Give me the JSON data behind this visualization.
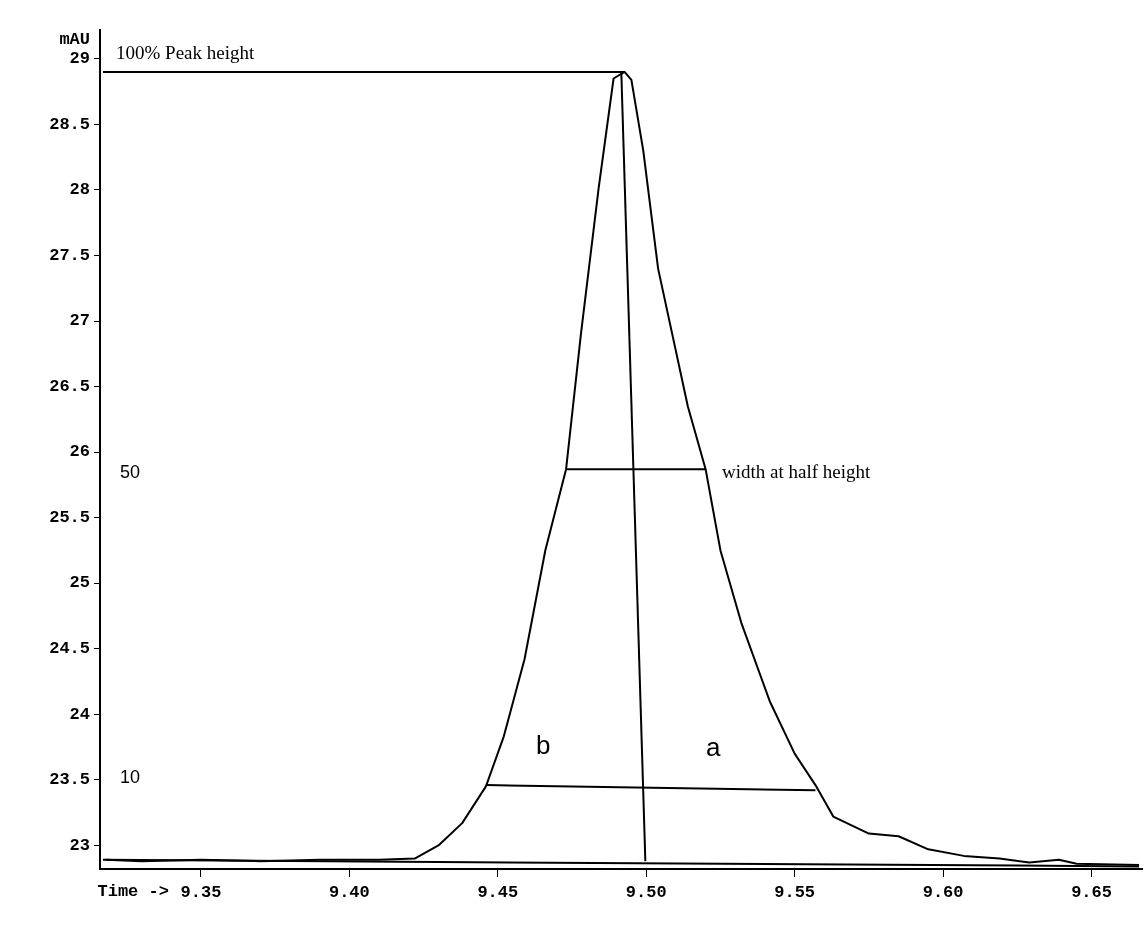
{
  "chart_data": {
    "type": "line",
    "xlabel": "Time ->",
    "ylabel": "mAU",
    "xlim": [
      9.316,
      9.667
    ],
    "ylim": [
      22.82,
      29.22
    ],
    "xticks": [
      {
        "value": 9.35,
        "label": "9.35"
      },
      {
        "value": 9.4,
        "label": "9.40"
      },
      {
        "value": 9.45,
        "label": "9.45"
      },
      {
        "value": 9.5,
        "label": "9.50"
      },
      {
        "value": 9.55,
        "label": "9.55"
      },
      {
        "value": 9.6,
        "label": "9.60"
      },
      {
        "value": 9.65,
        "label": "9.65"
      }
    ],
    "yticks": [
      23,
      23.5,
      24,
      24.5,
      25,
      25.5,
      26,
      26.5,
      27,
      27.5,
      28,
      28.5,
      29
    ],
    "marker": "none",
    "line_style": "solid",
    "series": [
      {
        "color": "#000000",
        "x": [
          9.318,
          9.33,
          9.35,
          9.37,
          9.39,
          9.41,
          9.422,
          9.43,
          9.438,
          9.446,
          9.452,
          9.459,
          9.466,
          9.473,
          9.478,
          9.484,
          9.489,
          9.4927,
          9.495,
          9.499,
          9.504,
          9.514,
          9.52,
          9.525,
          9.532,
          9.5416,
          9.55,
          9.557,
          9.563,
          9.575,
          9.585,
          9.595,
          9.607,
          9.619,
          9.629,
          9.639,
          9.645,
          9.666
        ],
        "values": [
          22.89,
          22.88,
          22.89,
          22.88,
          22.89,
          22.89,
          22.9,
          23.0,
          23.17,
          23.45,
          23.83,
          24.42,
          25.25,
          25.87,
          26.9,
          28.02,
          28.85,
          28.9,
          28.84,
          28.3,
          27.4,
          26.35,
          25.87,
          25.25,
          24.7,
          24.1,
          23.7,
          23.46,
          23.22,
          23.09,
          23.07,
          22.97,
          22.92,
          22.9,
          22.87,
          22.89,
          22.86,
          22.85
        ]
      },
      {
        "color": "#000000",
        "x": [
          9.317,
          9.666
        ],
        "values": [
          22.89,
          22.84
        ]
      },
      {
        "color": "#000000",
        "x": [
          9.317,
          9.4927
        ],
        "values": [
          28.9,
          28.9
        ]
      },
      {
        "color": "#000000",
        "x": [
          9.4916,
          9.4997
        ],
        "values": [
          28.9,
          22.88
        ]
      },
      {
        "color": "#000000",
        "x": [
          9.473,
          9.52
        ],
        "values": [
          25.87,
          25.87
        ]
      },
      {
        "color": "#000000",
        "x": [
          9.446,
          9.557
        ],
        "values": [
          23.46,
          23.42
        ]
      }
    ],
    "annotations": [
      "100% Peak height",
      "width at half height",
      "50",
      "10",
      "b",
      "a"
    ]
  }
}
